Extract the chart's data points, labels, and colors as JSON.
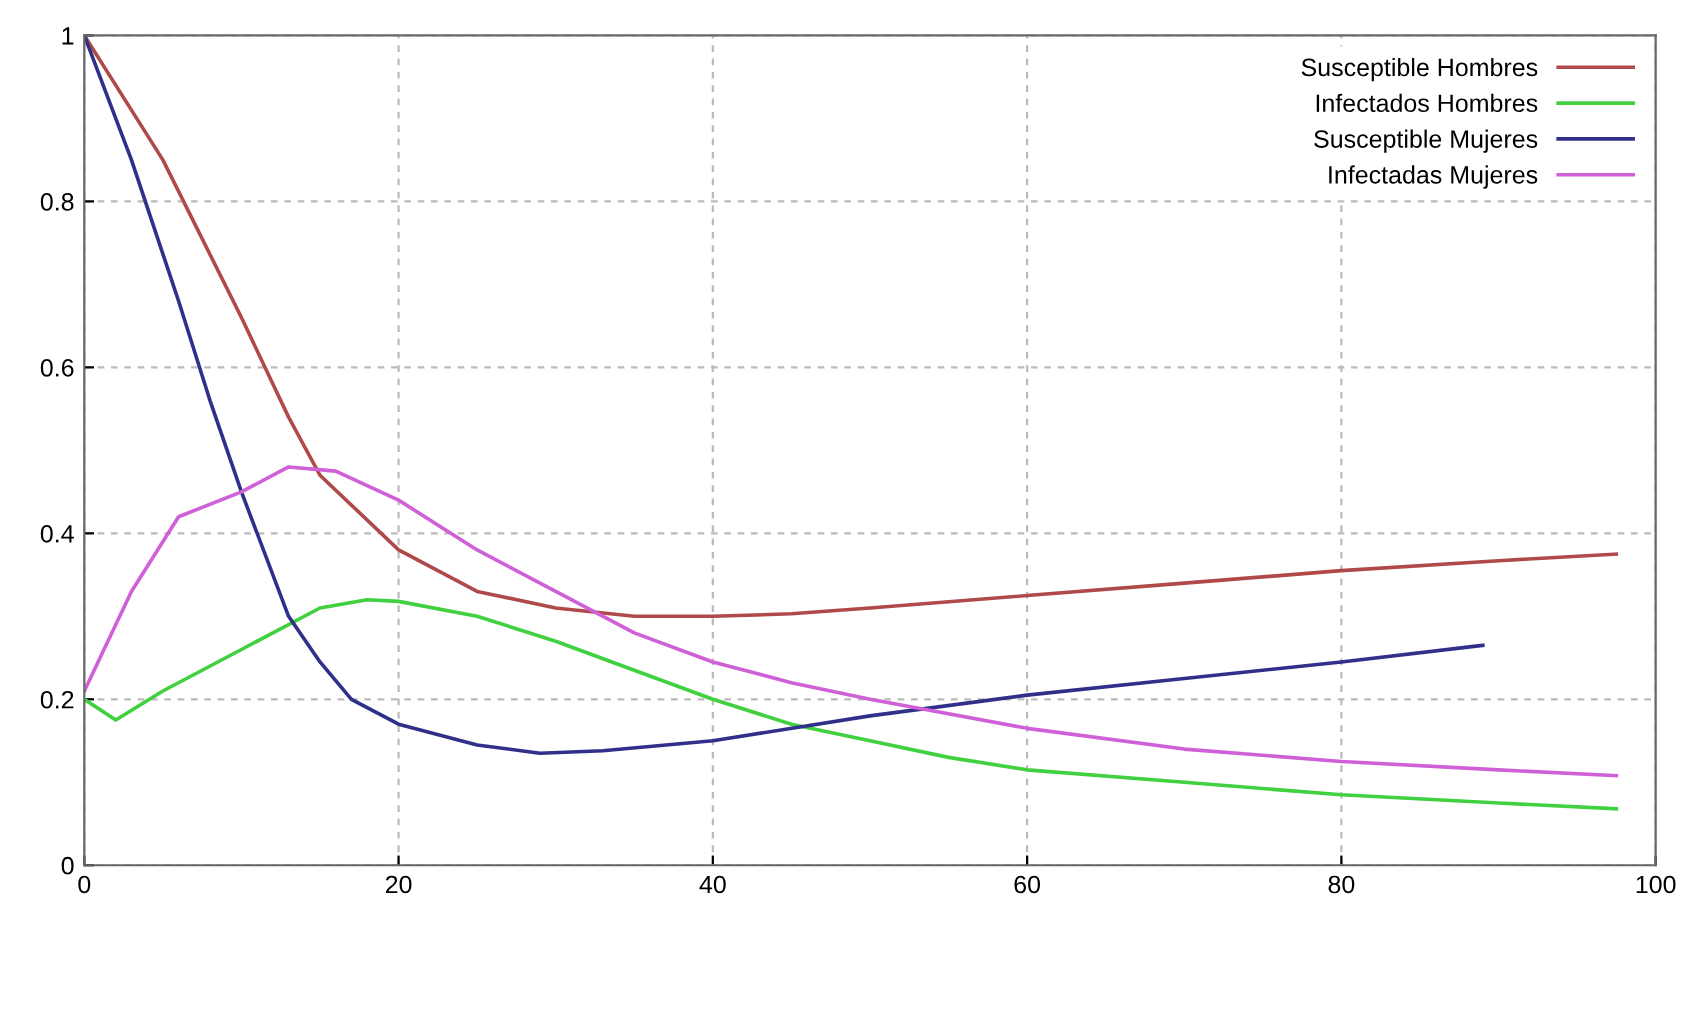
{
  "chart_data": {
    "type": "line",
    "xlim": [
      0,
      100
    ],
    "xticks": [
      0,
      20,
      40,
      60,
      80,
      100
    ],
    "ylim": [
      0,
      1
    ],
    "yticks": [
      0,
      0.2,
      0.4,
      0.6,
      0.8,
      1
    ],
    "grid": true,
    "legend": "top right",
    "line_style": "solid",
    "series": [
      {
        "name": "Susceptible Hombres",
        "color": "#b04a4a",
        "x": [
          0,
          5,
          10,
          13,
          15,
          20,
          25,
          30,
          35,
          40,
          45,
          50,
          60,
          70,
          80,
          90,
          97.5
        ],
        "values": [
          1.0,
          0.85,
          0.66,
          0.54,
          0.47,
          0.38,
          0.33,
          0.31,
          0.3,
          0.3,
          0.303,
          0.31,
          0.325,
          0.34,
          0.355,
          0.367,
          0.375
        ]
      },
      {
        "name": "Infectados Hombres",
        "color": "#40d040",
        "x": [
          0,
          2,
          5,
          10,
          15,
          18,
          20,
          25,
          30,
          35,
          40,
          45,
          50,
          55,
          60,
          70,
          80,
          90,
          97.5
        ],
        "values": [
          0.2,
          0.175,
          0.21,
          0.26,
          0.31,
          0.32,
          0.318,
          0.3,
          0.27,
          0.235,
          0.2,
          0.17,
          0.15,
          0.13,
          0.115,
          0.1,
          0.085,
          0.075,
          0.068
        ]
      },
      {
        "name": "Susceptible Mujeres",
        "color": "#30308a",
        "x": [
          0,
          3,
          6,
          8,
          10,
          13,
          15,
          17,
          20,
          25,
          29,
          33,
          40,
          50,
          60,
          70,
          80,
          89
        ],
        "values": [
          1.0,
          0.85,
          0.68,
          0.56,
          0.45,
          0.3,
          0.245,
          0.2,
          0.17,
          0.145,
          0.135,
          0.138,
          0.15,
          0.18,
          0.205,
          0.225,
          0.245,
          0.265
        ]
      },
      {
        "name": "Infectadas Mujeres",
        "color": "#d060d8",
        "x": [
          0,
          3,
          6,
          10,
          13,
          16,
          20,
          25,
          30,
          35,
          40,
          45,
          50,
          60,
          70,
          80,
          90,
          97.5
        ],
        "values": [
          0.21,
          0.33,
          0.42,
          0.45,
          0.48,
          0.475,
          0.44,
          0.38,
          0.33,
          0.28,
          0.245,
          0.22,
          0.2,
          0.165,
          0.14,
          0.125,
          0.115,
          0.108
        ]
      }
    ]
  }
}
